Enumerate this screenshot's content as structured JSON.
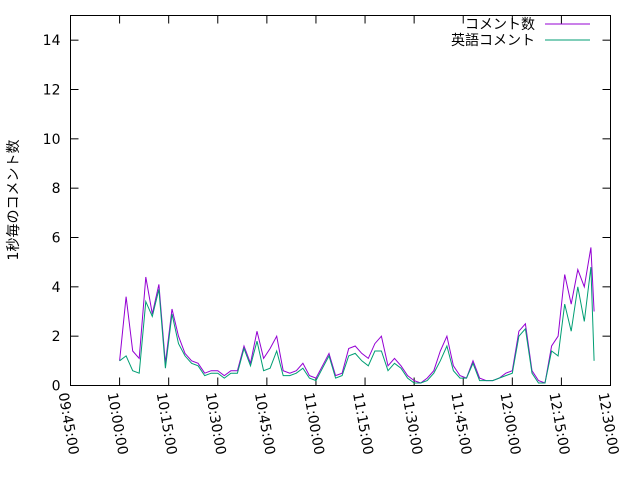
{
  "chart_data": {
    "type": "line",
    "y_label": "1秒毎のコメント数",
    "x": [
      "10:00:00",
      "10:02:00",
      "10:04:00",
      "10:06:00",
      "10:08:00",
      "10:10:00",
      "10:12:00",
      "10:14:00",
      "10:16:00",
      "10:18:00",
      "10:20:00",
      "10:22:00",
      "10:24:00",
      "10:26:00",
      "10:28:00",
      "10:30:00",
      "10:32:00",
      "10:34:00",
      "10:36:00",
      "10:38:00",
      "10:40:00",
      "10:42:00",
      "10:44:00",
      "10:46:00",
      "10:48:00",
      "10:50:00",
      "10:52:00",
      "10:54:00",
      "10:56:00",
      "10:58:00",
      "11:00:00",
      "11:02:00",
      "11:04:00",
      "11:06:00",
      "11:08:00",
      "11:10:00",
      "11:12:00",
      "11:14:00",
      "11:16:00",
      "11:18:00",
      "11:20:00",
      "11:22:00",
      "11:24:00",
      "11:26:00",
      "11:28:00",
      "11:30:00",
      "11:32:00",
      "11:34:00",
      "11:36:00",
      "11:38:00",
      "11:40:00",
      "11:42:00",
      "11:44:00",
      "11:46:00",
      "11:48:00",
      "11:50:00",
      "11:52:00",
      "11:54:00",
      "11:56:00",
      "11:58:00",
      "12:00:00",
      "12:02:00",
      "12:04:00",
      "12:06:00",
      "12:08:00",
      "12:10:00",
      "12:12:00",
      "12:14:00",
      "12:16:00",
      "12:18:00",
      "12:20:00",
      "12:22:00",
      "12:24:00",
      "12:25:00"
    ],
    "series": [
      {
        "name": "コメント数",
        "color": "#9400d3",
        "values": [
          1.0,
          3.6,
          1.4,
          1.1,
          4.4,
          2.9,
          4.1,
          0.9,
          3.1,
          2.0,
          1.3,
          1.0,
          0.9,
          0.5,
          0.6,
          0.6,
          0.4,
          0.6,
          0.6,
          1.6,
          0.9,
          2.2,
          1.1,
          1.5,
          2.0,
          0.6,
          0.5,
          0.6,
          0.9,
          0.4,
          0.3,
          0.8,
          1.3,
          0.4,
          0.5,
          1.5,
          1.6,
          1.3,
          1.1,
          1.7,
          2.0,
          0.8,
          1.1,
          0.8,
          0.4,
          0.2,
          0.1,
          0.3,
          0.6,
          1.4,
          2.0,
          0.8,
          0.4,
          0.3,
          1.0,
          0.3,
          0.2,
          0.2,
          0.3,
          0.5,
          0.6,
          2.2,
          2.5,
          0.6,
          0.2,
          0.1,
          1.6,
          2.0,
          4.5,
          3.3,
          4.7,
          4.0,
          5.6,
          3.0
        ]
      },
      {
        "name": "英語コメント",
        "color": "#009e73",
        "values": [
          1.0,
          1.2,
          0.6,
          0.5,
          3.4,
          2.8,
          3.9,
          0.7,
          2.9,
          1.7,
          1.2,
          0.9,
          0.8,
          0.4,
          0.5,
          0.5,
          0.3,
          0.5,
          0.5,
          1.5,
          0.8,
          1.8,
          0.6,
          0.7,
          1.4,
          0.4,
          0.4,
          0.5,
          0.7,
          0.3,
          0.2,
          0.7,
          1.2,
          0.3,
          0.4,
          1.2,
          1.3,
          1.0,
          0.8,
          1.4,
          1.4,
          0.6,
          0.9,
          0.7,
          0.3,
          0.1,
          0.1,
          0.2,
          0.5,
          1.0,
          1.6,
          0.6,
          0.3,
          0.3,
          0.9,
          0.2,
          0.2,
          0.2,
          0.3,
          0.4,
          0.5,
          2.0,
          2.3,
          0.5,
          0.1,
          0.1,
          1.4,
          1.2,
          3.3,
          2.2,
          4.0,
          2.6,
          4.8,
          1.0
        ]
      }
    ],
    "xlim": [
      "09:45:00",
      "12:30:00"
    ],
    "xticks": [
      "09:45:00",
      "10:00:00",
      "10:15:00",
      "10:30:00",
      "10:45:00",
      "11:00:00",
      "11:15:00",
      "11:30:00",
      "11:45:00",
      "12:00:00",
      "12:15:00",
      "12:30:00"
    ],
    "ylim": [
      0,
      15
    ],
    "yticks": [
      0,
      2,
      4,
      6,
      8,
      10,
      12,
      14
    ],
    "legend": "top-right"
  }
}
